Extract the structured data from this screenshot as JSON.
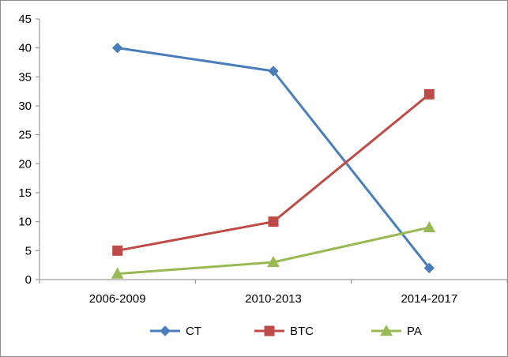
{
  "chart_data": {
    "type": "line",
    "title": "",
    "xlabel": "",
    "ylabel": "",
    "categories": [
      "2006-2009",
      "2010-2013",
      "2014-2017"
    ],
    "ylim": [
      0,
      45
    ],
    "y_ticks": [
      0,
      5,
      10,
      15,
      20,
      25,
      30,
      35,
      40,
      45
    ],
    "grid": false,
    "legend_position": "bottom",
    "series": [
      {
        "name": "CT",
        "values": [
          40,
          36,
          2
        ],
        "color": "#4a7ebb",
        "marker": "diamond"
      },
      {
        "name": "BTC",
        "values": [
          5,
          10,
          32
        ],
        "color": "#be4b48",
        "marker": "square"
      },
      {
        "name": "PA",
        "values": [
          1,
          3,
          9
        ],
        "color": "#98b954",
        "marker": "triangle"
      }
    ]
  }
}
